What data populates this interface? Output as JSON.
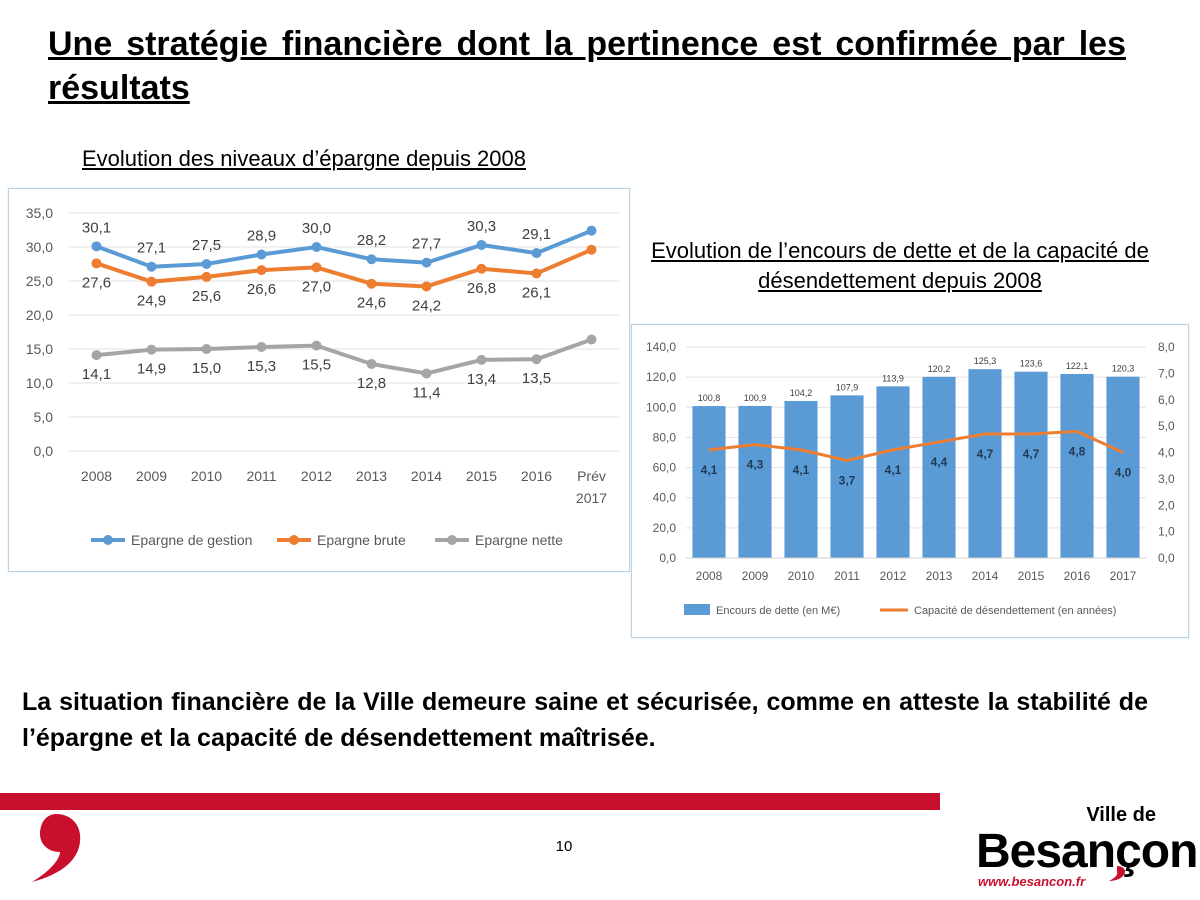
{
  "slide": {
    "title": "Une stratégie financière dont la pertinence est confirmée par les résultats",
    "conclusion": "La situation financière de la Ville demeure saine et sécurisée, comme en atteste la stabilité de l’épargne et la capacité de désendettement maîtrisée.",
    "page_number": "10"
  },
  "brand": {
    "ville": "Ville de",
    "name": "Besançon",
    "url": "www.besancon.fr",
    "accent": "#c8102e"
  },
  "chart_data": [
    {
      "type": "line",
      "title": "Evolution des niveaux d’épargne depuis 2008",
      "categories": [
        "2008",
        "2009",
        "2010",
        "2011",
        "2012",
        "2013",
        "2014",
        "2015",
        "2016",
        "Prév 2017"
      ],
      "ylim": [
        0,
        35
      ],
      "yticks": [
        "0,0",
        "5,0",
        "10,0",
        "15,0",
        "20,0",
        "25,0",
        "30,0",
        "35,0"
      ],
      "grid": true,
      "legend_position": "bottom",
      "series": [
        {
          "name": "Epargne de gestion",
          "color": "#5b9bd5",
          "values": [
            30.1,
            27.1,
            27.5,
            28.9,
            30.0,
            28.2,
            27.7,
            30.3,
            29.1,
            32.4
          ],
          "labels": [
            "30,1",
            "27,1",
            "27,5",
            "28,9",
            "30,0",
            "28,2",
            "27,7",
            "30,3",
            "29,1",
            ""
          ],
          "label_pos": "above"
        },
        {
          "name": "Epargne brute",
          "color": "#ed7d31",
          "values": [
            27.6,
            24.9,
            25.6,
            26.6,
            27.0,
            24.6,
            24.2,
            26.8,
            26.1,
            29.6
          ],
          "labels": [
            "27,6",
            "24,9",
            "25,6",
            "26,6",
            "27,0",
            "24,6",
            "24,2",
            "26,8",
            "26,1",
            ""
          ],
          "label_pos": "below"
        },
        {
          "name": "Epargne nette",
          "color": "#a5a5a5",
          "values": [
            14.1,
            14.9,
            15.0,
            15.3,
            15.5,
            12.8,
            11.4,
            13.4,
            13.5,
            16.4
          ],
          "labels": [
            "14,1",
            "14,9",
            "15,0",
            "15,3",
            "15,5",
            "12,8",
            "11,4",
            "13,4",
            "13,5",
            ""
          ],
          "label_pos": "below"
        }
      ]
    },
    {
      "type": "bar",
      "title": "Evolution de l’encours de dette et de la capacité de désendettement depuis 2008",
      "categories": [
        "2008",
        "2009",
        "2010",
        "2011",
        "2012",
        "2013",
        "2014",
        "2015",
        "2016",
        "2017"
      ],
      "ylim": [
        0,
        140
      ],
      "yticks": [
        "0,0",
        "20,0",
        "40,0",
        "60,0",
        "80,0",
        "100,0",
        "120,0",
        "140,0"
      ],
      "y2lim": [
        0,
        8
      ],
      "y2ticks": [
        "0,0",
        "1,0",
        "2,0",
        "3,0",
        "4,0",
        "5,0",
        "6,0",
        "7,0",
        "8,0"
      ],
      "legend_position": "bottom",
      "series": [
        {
          "name": "Encours de dette (en M€)",
          "type": "bar",
          "axis": "left",
          "color": "#5b9bd5",
          "values": [
            100.8,
            100.9,
            104.2,
            107.9,
            113.9,
            120.2,
            125.3,
            123.6,
            122.1,
            120.3
          ],
          "labels": [
            "100,8",
            "100,9",
            "104,2",
            "107,9",
            "113,9",
            "120,2",
            "125,3",
            "123,6",
            "122,1",
            "120,3"
          ]
        },
        {
          "name": "Capacité de désendettement (en années)",
          "type": "line",
          "axis": "right",
          "color": "#ed7d31",
          "values": [
            4.1,
            4.3,
            4.1,
            3.7,
            4.1,
            4.4,
            4.7,
            4.7,
            4.8,
            4.0
          ],
          "labels": [
            "4,1",
            "4,3",
            "4,1",
            "3,7",
            "4,1",
            "4,4",
            "4,7",
            "4,7",
            "4,8",
            "4,0"
          ]
        }
      ]
    }
  ]
}
